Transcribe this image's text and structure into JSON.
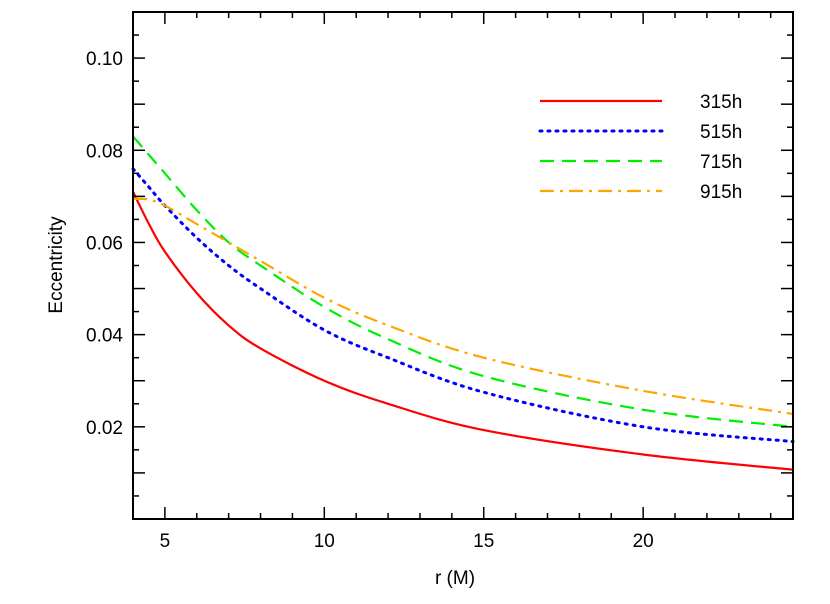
{
  "chart_data": {
    "type": "line",
    "title": "",
    "xlabel": "r (M)",
    "ylabel": "Eccentricity",
    "xlim": [
      4,
      24.7
    ],
    "ylim": [
      0.0,
      0.11
    ],
    "xticks": [
      5,
      10,
      15,
      20
    ],
    "xtick_labels": [
      "5",
      "10",
      "15",
      "20"
    ],
    "yticks": [
      0.02,
      0.04,
      0.06,
      0.08,
      0.1
    ],
    "ytick_labels": [
      "0.02",
      "0.04",
      "0.06",
      "0.08",
      "0.10"
    ],
    "grid": false,
    "legend_position": "top-right",
    "x": [
      4,
      4.5,
      5,
      6,
      7,
      8,
      10,
      12,
      15,
      20,
      24.7
    ],
    "series": [
      {
        "name": "315h",
        "color": "#ff0000",
        "style": "solid",
        "values": [
          0.071,
          0.064,
          0.058,
          0.049,
          0.042,
          0.037,
          0.03,
          0.025,
          0.0193,
          0.014,
          0.0107
        ]
      },
      {
        "name": "515h",
        "color": "#0000ff",
        "style": "dotted",
        "values": [
          0.076,
          0.072,
          0.068,
          0.061,
          0.055,
          0.05,
          0.041,
          0.035,
          0.0275,
          0.02,
          0.0168
        ]
      },
      {
        "name": "715h",
        "color": "#00ee00",
        "style": "dashed",
        "values": [
          0.083,
          0.079,
          0.075,
          0.067,
          0.06,
          0.055,
          0.046,
          0.039,
          0.031,
          0.0237,
          0.02
        ]
      },
      {
        "name": "915h",
        "color": "#ffa500",
        "style": "dashdot",
        "values": [
          0.0695,
          0.0693,
          0.068,
          0.064,
          0.06,
          0.056,
          0.048,
          0.042,
          0.035,
          0.0278,
          0.0228
        ]
      }
    ]
  }
}
